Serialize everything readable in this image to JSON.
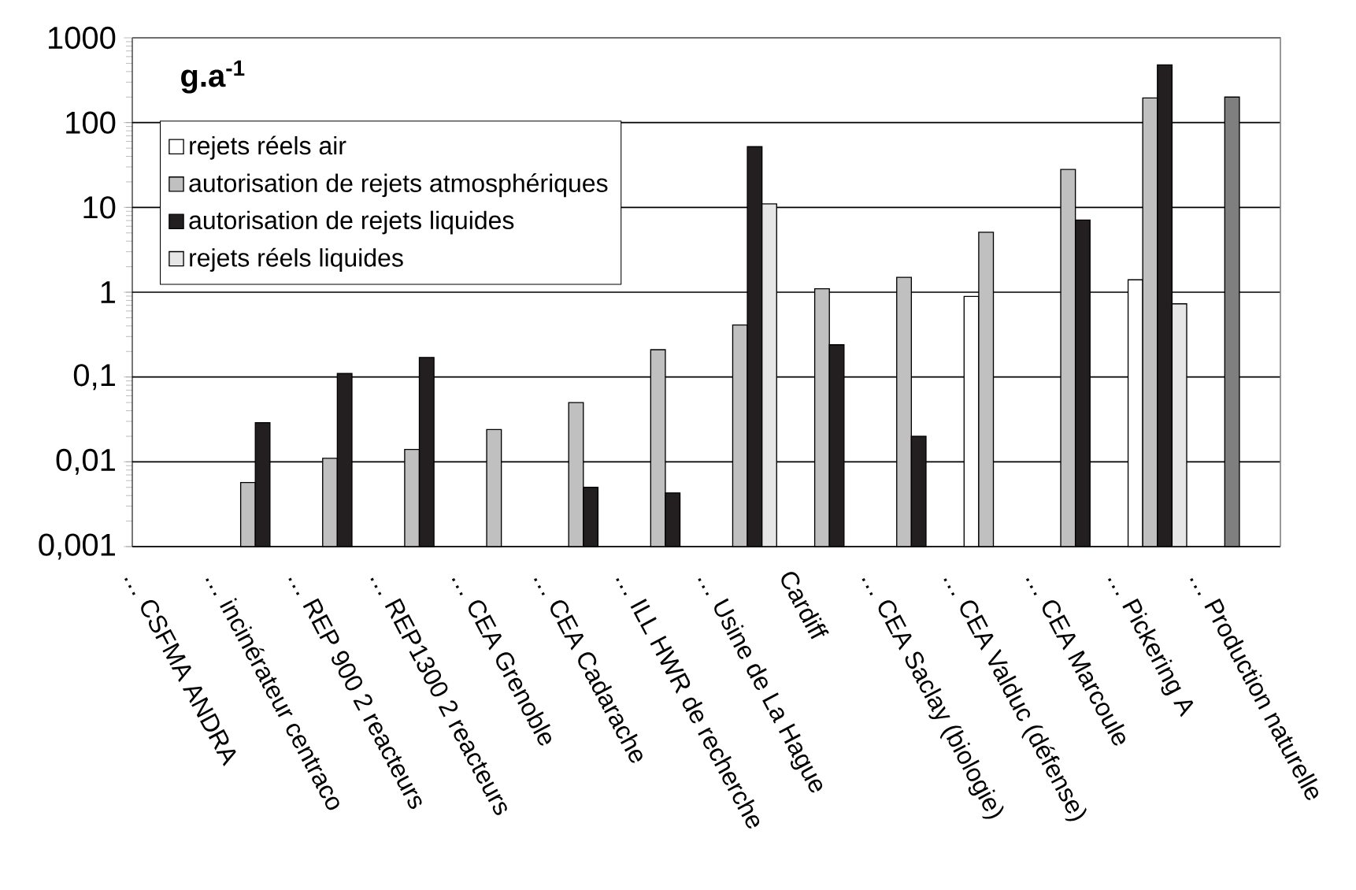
{
  "chart_data": {
    "type": "bar",
    "ylabel": "g.a$^{-1}$",
    "categories": [
      "… CSFMA ANDRA",
      "… incinérateur centraco",
      "… REP 900 2 reacteurs",
      "… REP1300 2 reacteurs",
      "… CEA Grenoble",
      "… CEA Cadarache",
      "… ILL HWR de recherche",
      "… Usine de La Hague",
      "Cardiff",
      "… CEA Saclay (biologie)",
      "… CEA Valduc (défense)",
      "… CEA Marcoule",
      "… Pickering A",
      "… Production naturelle"
    ],
    "series": [
      {
        "name": "rejets réels air",
        "color": "#ffffff",
        "values": [
          null,
          null,
          null,
          null,
          null,
          null,
          null,
          null,
          null,
          null,
          0.89,
          null,
          1.4,
          null
        ]
      },
      {
        "name": "autorisation de rejets atmosphériques",
        "color": "#c0c0c0",
        "colors": [
          "#c0c0c0",
          "#c0c0c0",
          "#c0c0c0",
          "#c0c0c0",
          "#c0c0c0",
          "#c0c0c0",
          "#c0c0c0",
          "#c0c0c0",
          "#c0c0c0",
          "#c0c0c0",
          "#c0c0c0",
          "#c0c0c0",
          "#c0c0c0",
          "#7f7f7f"
        ],
        "values": [
          null,
          0.0057,
          0.011,
          0.014,
          0.024,
          0.05,
          0.21,
          0.41,
          1.1,
          1.5,
          5.1,
          28,
          195,
          200
        ]
      },
      {
        "name": "autorisation de rejets liquides",
        "color": "#231f20",
        "values": [
          null,
          0.029,
          0.11,
          0.17,
          null,
          0.005,
          0.0043,
          52,
          0.24,
          0.02,
          null,
          7.1,
          480,
          null
        ]
      },
      {
        "name": "rejets réels liquides",
        "color": "#e6e6e6",
        "values": [
          null,
          null,
          null,
          null,
          null,
          null,
          null,
          11,
          null,
          null,
          null,
          null,
          0.73,
          null
        ]
      }
    ],
    "log": "y",
    "ylim": [
      0.001,
      1000
    ],
    "yticks": [
      {
        "value": 0.001,
        "label": "0,001"
      },
      {
        "value": 0.01,
        "label": "0,01"
      },
      {
        "value": 0.1,
        "label": "0,1"
      },
      1,
      10,
      100,
      1000
    ],
    "grid": "y",
    "legend": "top left"
  }
}
